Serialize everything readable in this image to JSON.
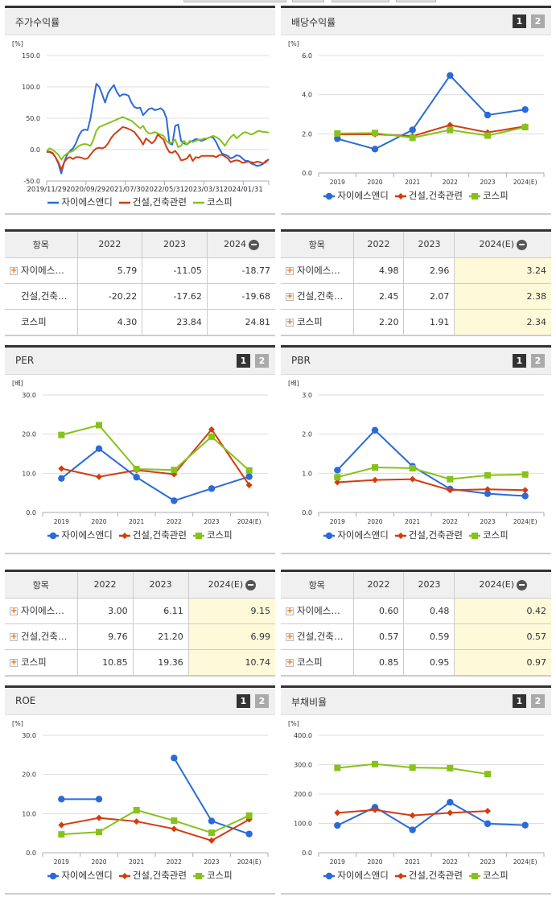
{
  "colors": {
    "company": "#2a6ad9",
    "industry": "#d33c10",
    "kospi": "#86c21a",
    "estimate_bg": "#fef9d8"
  },
  "series_names": [
    "자이에스앤디",
    "건설,건축관련",
    "코스피"
  ],
  "panels": {
    "stock_return": {
      "title": "주가수익률",
      "unit": "[%]",
      "table": {
        "headers": [
          "항목",
          "2022",
          "2023",
          "2024"
        ],
        "rows": [
          {
            "name": "자이에스…",
            "expandable": true,
            "values": [
              "5.79",
              "-11.05",
              "-18.77"
            ]
          },
          {
            "name": "건설,건축…",
            "expandable": false,
            "values": [
              "-20.22",
              "-17.62",
              "-19.68"
            ]
          },
          {
            "name": "코스피",
            "expandable": false,
            "values": [
              "4.30",
              "23.84",
              "24.81"
            ]
          }
        ],
        "estimate_col": false
      }
    },
    "dividend": {
      "title": "배당수익률",
      "unit": "[%]",
      "btn1": "1",
      "btn2": "2",
      "table": {
        "headers": [
          "항목",
          "2022",
          "2023",
          "2024(E)"
        ],
        "rows": [
          {
            "name": "자이에스…",
            "expandable": true,
            "values": [
              "4.98",
              "2.96",
              "3.24"
            ]
          },
          {
            "name": "건설,건축…",
            "expandable": true,
            "values": [
              "2.45",
              "2.07",
              "2.38"
            ]
          },
          {
            "name": "코스피",
            "expandable": true,
            "values": [
              "2.20",
              "1.91",
              "2.34"
            ]
          }
        ],
        "estimate_col": true
      }
    },
    "per": {
      "title": "PER",
      "unit": "[배]",
      "btn1": "1",
      "btn2": "2",
      "table": {
        "headers": [
          "항목",
          "2022",
          "2023",
          "2024(E)"
        ],
        "rows": [
          {
            "name": "자이에스…",
            "expandable": true,
            "values": [
              "3.00",
              "6.11",
              "9.15"
            ]
          },
          {
            "name": "건설,건축…",
            "expandable": true,
            "values": [
              "9.76",
              "21.20",
              "6.99"
            ]
          },
          {
            "name": "코스피",
            "expandable": true,
            "values": [
              "10.85",
              "19.36",
              "10.74"
            ]
          }
        ],
        "estimate_col": true
      }
    },
    "pbr": {
      "title": "PBR",
      "unit": "[배]",
      "btn1": "1",
      "btn2": "2",
      "table": {
        "headers": [
          "항목",
          "2022",
          "2023",
          "2024(E)"
        ],
        "rows": [
          {
            "name": "자이에스…",
            "expandable": true,
            "values": [
              "0.60",
              "0.48",
              "0.42"
            ]
          },
          {
            "name": "건설,건축…",
            "expandable": true,
            "values": [
              "0.57",
              "0.59",
              "0.57"
            ]
          },
          {
            "name": "코스피",
            "expandable": true,
            "values": [
              "0.85",
              "0.95",
              "0.97"
            ]
          }
        ],
        "estimate_col": true
      }
    },
    "roe": {
      "title": "ROE",
      "unit": "[%]",
      "btn1": "1",
      "btn2": "2"
    },
    "debt_ratio": {
      "title": "부채비율",
      "unit": "[%]",
      "btn1": "1",
      "btn2": "2"
    }
  },
  "chart_data": [
    {
      "id": "stock_return",
      "type": "line",
      "title": "주가수익률",
      "ylabel": "[%]",
      "ylim": [
        -50,
        150
      ],
      "yticks": [
        "150.0",
        "100.0",
        "50.0",
        "0.0",
        "-50.0"
      ],
      "x_tick_labels": [
        "2019/11/29",
        "2020/09/29",
        "2021/07/30",
        "2022/05/31",
        "2023/03/31",
        "2024/01/31"
      ],
      "series": [
        {
          "name": "자이에스앤디",
          "values": [
            -3,
            -4,
            -6,
            -12,
            -22,
            -38,
            -20,
            -8,
            -2,
            2,
            10,
            22,
            30,
            32,
            31,
            50,
            78,
            105,
            100,
            88,
            75,
            90,
            97,
            103,
            92,
            85,
            88,
            88,
            86,
            75,
            68,
            66,
            67,
            55,
            60,
            65,
            66,
            63,
            64,
            66,
            62,
            50,
            10,
            8,
            38,
            40,
            14,
            10,
            8,
            12,
            14,
            17,
            16,
            14,
            16,
            18,
            20,
            19,
            12,
            2,
            -6,
            -8,
            -10,
            -14,
            -12,
            -9,
            -10,
            -14,
            -18,
            -18,
            -22,
            -24,
            -26,
            -25,
            -23,
            -18,
            -16
          ],
          "note": "approximate weekly trace"
        },
        {
          "name": "건설,건축관련",
          "values": [
            -4,
            -3,
            -5,
            -12,
            -20,
            -32,
            -20,
            -14,
            -12,
            -15,
            -12,
            -12,
            -13,
            -15,
            -14,
            -8,
            -2,
            2,
            3,
            2,
            4,
            10,
            18,
            24,
            28,
            32,
            36,
            35,
            33,
            31,
            28,
            22,
            16,
            8,
            18,
            14,
            10,
            14,
            24,
            20,
            16,
            4,
            -4,
            -5,
            -2,
            -8,
            -17,
            -16,
            -14,
            -8,
            -18,
            -12,
            -13,
            -10,
            -10,
            -10,
            -10,
            -10,
            -12,
            -9,
            -8,
            -11,
            -14,
            -20,
            -18,
            -17,
            -18,
            -21,
            -20,
            -19,
            -20,
            -21,
            -19,
            -20,
            -22,
            -20,
            -15
          ]
        },
        {
          "name": "코스피",
          "values": [
            -2,
            2,
            0,
            -4,
            -8,
            -16,
            -10,
            -6,
            -4,
            -2,
            2,
            6,
            8,
            9,
            8,
            6,
            16,
            30,
            36,
            38,
            40,
            42,
            44,
            46,
            48,
            50,
            52,
            50,
            48,
            46,
            42,
            38,
            34,
            38,
            30,
            26,
            26,
            28,
            26,
            24,
            22,
            14,
            10,
            12,
            16,
            4,
            6,
            14,
            8,
            14,
            12,
            14,
            16,
            16,
            18,
            18,
            20,
            22,
            20,
            17,
            12,
            6,
            14,
            20,
            24,
            18,
            22,
            26,
            28,
            26,
            24,
            26,
            29,
            30,
            28,
            28,
            27
          ]
        }
      ]
    },
    {
      "id": "dividend",
      "type": "line",
      "title": "배당수익률",
      "ylabel": "[%]",
      "ylim": [
        0,
        6
      ],
      "yticks": [
        "6.0",
        "4.0",
        "2.0",
        "0.0"
      ],
      "categories": [
        "2019",
        "2020",
        "2021",
        "2022",
        "2023",
        "2024(E)"
      ],
      "series": [
        {
          "name": "자이에스앤디",
          "values": [
            1.75,
            1.22,
            2.2,
            4.98,
            2.96,
            3.24
          ]
        },
        {
          "name": "건설,건축관련",
          "values": [
            1.97,
            1.98,
            1.88,
            2.45,
            2.07,
            2.38
          ]
        },
        {
          "name": "코스피",
          "values": [
            2.02,
            2.04,
            1.8,
            2.2,
            1.91,
            2.34
          ]
        }
      ]
    },
    {
      "id": "per",
      "type": "line",
      "title": "PER",
      "ylabel": "[배]",
      "ylim": [
        0,
        30
      ],
      "yticks": [
        "30.0",
        "20.0",
        "10.0",
        "0.0"
      ],
      "categories": [
        "2019",
        "2020",
        "2021",
        "2022",
        "2023",
        "2024(E)"
      ],
      "series": [
        {
          "name": "자이에스앤디",
          "values": [
            8.7,
            16.3,
            9.0,
            3.0,
            6.11,
            9.15
          ]
        },
        {
          "name": "건설,건축관련",
          "values": [
            11.2,
            9.1,
            10.8,
            9.76,
            21.2,
            6.99
          ]
        },
        {
          "name": "코스피",
          "values": [
            19.8,
            22.3,
            11.1,
            10.85,
            19.36,
            10.74
          ]
        }
      ]
    },
    {
      "id": "pbr",
      "type": "line",
      "title": "PBR",
      "ylabel": "[배]",
      "ylim": [
        0,
        3
      ],
      "yticks": [
        "3.0",
        "2.0",
        "1.0",
        "0.0"
      ],
      "categories": [
        "2019",
        "2020",
        "2021",
        "2022",
        "2023",
        "2024(E)"
      ],
      "series": [
        {
          "name": "자이에스앤디",
          "values": [
            1.08,
            2.1,
            1.18,
            0.6,
            0.48,
            0.42
          ]
        },
        {
          "name": "건설,건축관련",
          "values": [
            0.77,
            0.83,
            0.85,
            0.57,
            0.59,
            0.57
          ]
        },
        {
          "name": "코스피",
          "values": [
            0.9,
            1.15,
            1.13,
            0.85,
            0.95,
            0.97
          ]
        }
      ]
    },
    {
      "id": "roe",
      "type": "line",
      "title": "ROE",
      "ylabel": "[%]",
      "ylim": [
        0,
        30
      ],
      "yticks": [
        "30.0",
        "20.0",
        "10.0",
        "0.0"
      ],
      "categories": [
        "2019",
        "2020",
        "2021",
        "2022",
        "2023",
        "2024(E)"
      ],
      "series": [
        {
          "name": "자이에스앤디",
          "values": [
            13.7,
            13.7,
            null,
            24.2,
            8.1,
            4.8
          ]
        },
        {
          "name": "건설,건축관련",
          "values": [
            7.1,
            8.9,
            8.0,
            6.1,
            3.1,
            8.5
          ]
        },
        {
          "name": "코스피",
          "values": [
            4.7,
            5.3,
            10.9,
            8.2,
            5.1,
            9.5
          ]
        }
      ]
    },
    {
      "id": "debt_ratio",
      "type": "line",
      "title": "부채비율",
      "ylabel": "[%]",
      "ylim": [
        0,
        400
      ],
      "yticks": [
        "400.0",
        "300.0",
        "200.0",
        "100.0",
        "0.0"
      ],
      "categories": [
        "2019",
        "2020",
        "2021",
        "2022",
        "2023",
        "2024(E)"
      ],
      "series": [
        {
          "name": "자이에스앤디",
          "values": [
            93,
            155,
            78,
            172,
            99,
            94
          ]
        },
        {
          "name": "건설,건축관련",
          "values": [
            136,
            146,
            127,
            136,
            142,
            null
          ]
        },
        {
          "name": "코스피",
          "values": [
            289,
            302,
            290,
            288,
            268,
            null
          ]
        }
      ]
    }
  ]
}
